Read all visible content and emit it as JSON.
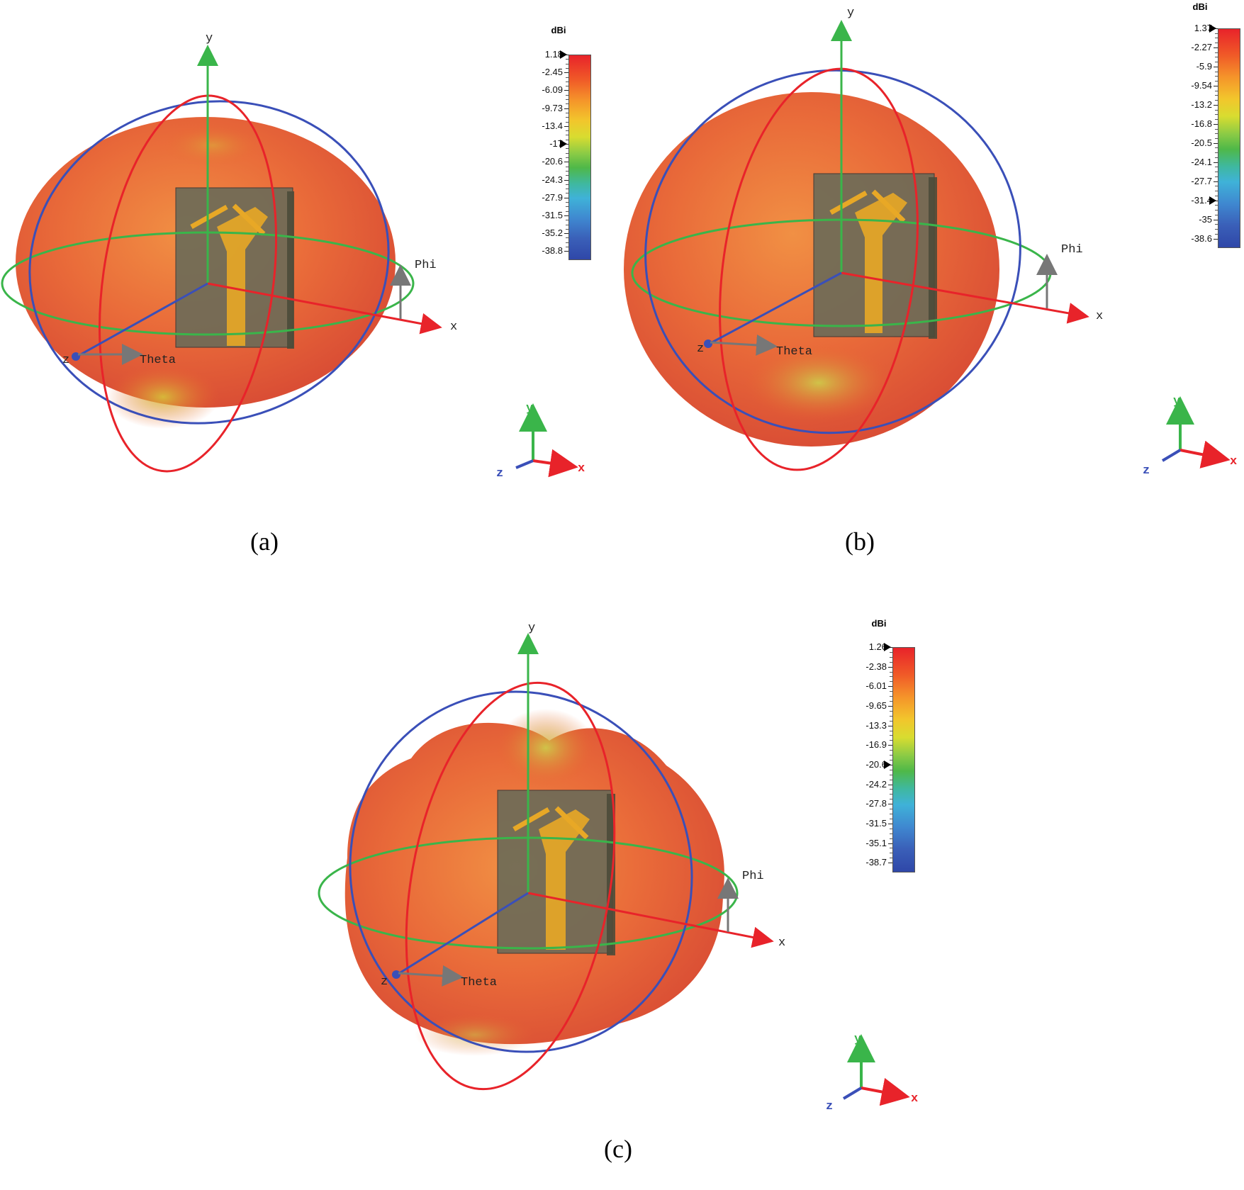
{
  "figure": {
    "panels": [
      {
        "caption": "(a)",
        "axis_labels": {
          "x": "x",
          "y": "y",
          "z": "z",
          "phi": "Phi",
          "theta": "Theta"
        },
        "colorbar": {
          "title": "dBi",
          "ticks": [
            "1.18",
            "-2.45",
            "-6.09",
            "-9.73",
            "-13.4",
            "-17",
            "-20.6",
            "-24.3",
            "-27.9",
            "-31.5",
            "-35.2",
            "-38.8"
          ],
          "marker_values": [
            "1.18",
            "-17"
          ]
        },
        "mini_axes": {
          "x": "x",
          "y": "y",
          "z": "z"
        }
      },
      {
        "caption": "(b)",
        "axis_labels": {
          "x": "x",
          "y": "y",
          "z": "z",
          "phi": "Phi",
          "theta": "Theta"
        },
        "colorbar": {
          "title": "dBi",
          "ticks": [
            "1.37",
            "-2.27",
            "-5.9",
            "-9.54",
            "-13.2",
            "-16.8",
            "-20.5",
            "-24.1",
            "-27.7",
            "-31.4",
            "-35",
            "-38.6"
          ],
          "marker_values": [
            "1.37",
            "-31.4"
          ]
        },
        "mini_axes": {
          "x": "x",
          "y": "y",
          "z": "z"
        }
      },
      {
        "caption": "(c)",
        "axis_labels": {
          "x": "x",
          "y": "y",
          "z": "z",
          "phi": "Phi",
          "theta": "Theta"
        },
        "colorbar": {
          "title": "dBi",
          "ticks": [
            "1.26",
            "-2.38",
            "-6.01",
            "-9.65",
            "-13.3",
            "-16.9",
            "-20.6",
            "-24.2",
            "-27.8",
            "-31.5",
            "-35.1",
            "-38.7"
          ],
          "marker_values": [
            "1.26",
            "-20.6"
          ]
        },
        "mini_axes": {
          "x": "x",
          "y": "y",
          "z": "z"
        }
      }
    ],
    "colors": {
      "x_axis": "#e8232a",
      "y_axis": "#3ab54a",
      "z_axis": "#3a4fb8",
      "pattern_surface": "#e8632f",
      "substrate": "#6b6b58",
      "patch": "#e8a826"
    }
  }
}
